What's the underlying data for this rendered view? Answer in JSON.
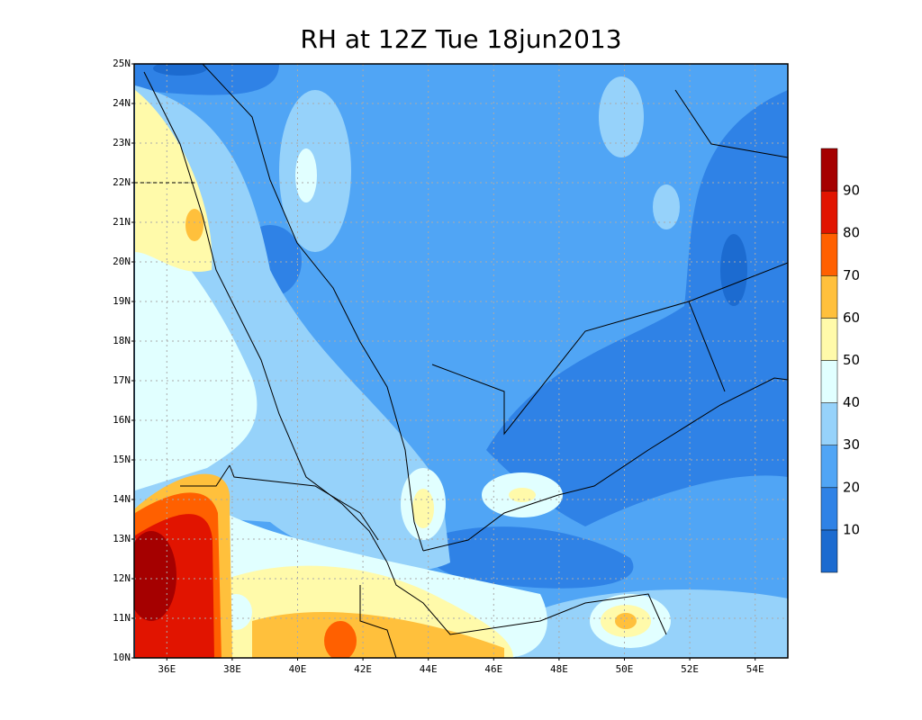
{
  "title": "RH at 12Z Tue 18jun2013",
  "axes": {
    "lat_labels": [
      "10N",
      "11N",
      "12N",
      "13N",
      "14N",
      "15N",
      "16N",
      "17N",
      "18N",
      "19N",
      "20N",
      "21N",
      "22N",
      "23N",
      "24N",
      "25N"
    ],
    "lon_labels": [
      "36E",
      "38E",
      "40E",
      "42E",
      "44E",
      "46E",
      "48E",
      "50E",
      "52E",
      "54E"
    ]
  },
  "colorbar": {
    "colors": [
      "#1c6bd0",
      "#2f82e6",
      "#50a5f5",
      "#96d2fa",
      "#e1ffff",
      "#fffaaa",
      "#ffc03c",
      "#ff6000",
      "#e11400",
      "#a50000"
    ],
    "labels": [
      10,
      20,
      30,
      40,
      50,
      60,
      70,
      80,
      90
    ]
  }
}
